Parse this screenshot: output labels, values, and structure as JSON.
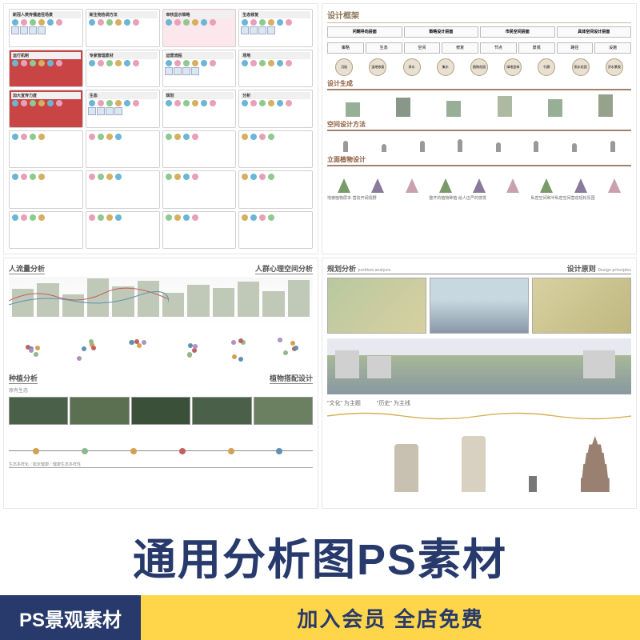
{
  "panel1": {
    "blocks": [
      {
        "cls": "",
        "hdr": "新冠人类传播途径场景"
      },
      {
        "cls": "",
        "hdr": "新生物协调方法"
      },
      {
        "cls": "pink",
        "hdr": "审核显示策略"
      },
      {
        "cls": "",
        "hdr": "生态修复"
      },
      {
        "cls": "red",
        "hdr": "运行机制"
      },
      {
        "cls": "",
        "hdr": "专家管理素材"
      },
      {
        "cls": "",
        "hdr": "运营流程"
      },
      {
        "cls": "",
        "hdr": "场地"
      },
      {
        "cls": "red",
        "hdr": "加大宣传力度"
      },
      {
        "cls": "",
        "hdr": "生态"
      },
      {
        "cls": "",
        "hdr": "规划"
      },
      {
        "cls": "",
        "hdr": "分析"
      }
    ],
    "icon_colors": [
      "#6bb6d6",
      "#e8a0b8",
      "#8fc98f",
      "#d4b060"
    ]
  },
  "panel2": {
    "title": "设计框架",
    "header_cols": [
      "问题导向层面",
      "策略设计层面",
      "市民空间层面",
      "具体空间设计层面"
    ],
    "sec_generate": "设计生成",
    "sec_method": "空间设计方法",
    "sec_plant": "立面植物设计",
    "circ_labels": [
      "沉陷",
      "湿地修复",
      "净水",
      "集水",
      "植物花园",
      "绿地造林",
      "行廊",
      "雨水花园",
      "涉水景观"
    ],
    "plant_labels": [
      "地被植物层本·营造开阔视野",
      "整齐的植物种植·给人庄严的感觉",
      "私密空间和半私密空间营造轻松氛围"
    ]
  },
  "panel3": {
    "hdr_flow": "人流量分析",
    "hdr_space": "人群心理空间分析",
    "hdr_plant": "种植分析",
    "hdr_match": "植物搭配设计",
    "sub_species": "原有生态",
    "bar_heights": [
      35,
      42,
      28,
      48,
      38,
      45,
      30,
      40,
      36,
      44,
      32,
      46
    ],
    "bar_color": "#c0c8b8",
    "dot_colors": [
      "#d4a050",
      "#8fb88f",
      "#c06060",
      "#6090b0",
      "#b090c0"
    ],
    "timeline_caption": "生态多样化／稳定健康／健康生态多样性",
    "photo_tint": "#4a6048"
  },
  "panel4": {
    "hdr_left": "规划分析",
    "hdr_left_en": "problem analysis",
    "hdr_right": "设计原则",
    "hdr_right_en": "Design principles",
    "theme1": "\"文化\" 为主题",
    "theme2": "\"历史\" 为主线",
    "wave_color": "#d4b050"
  },
  "banner": {
    "big_text": "通用分析图PS素材",
    "tag1": "PS景观素材",
    "tag2": "加入会员 全店免费",
    "big_color": "#273a6b",
    "tag1_bg": "#273a6b",
    "tag2_bg": "#ffd54a"
  }
}
